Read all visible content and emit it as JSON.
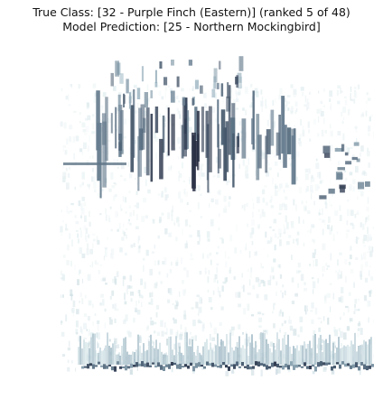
{
  "title": {
    "true_class": "True Class: [32 - Purple Finch (Eastern)] (ranked 5 of 48)",
    "prediction": "Model Prediction: [25 - Northern Mockingbird]"
  },
  "image": {
    "kind": "spectrogram",
    "colormap": [
      "#ffffff",
      "#dbe9ec",
      "#9fb8c4",
      "#4f6478",
      "#1d2036"
    ]
  }
}
